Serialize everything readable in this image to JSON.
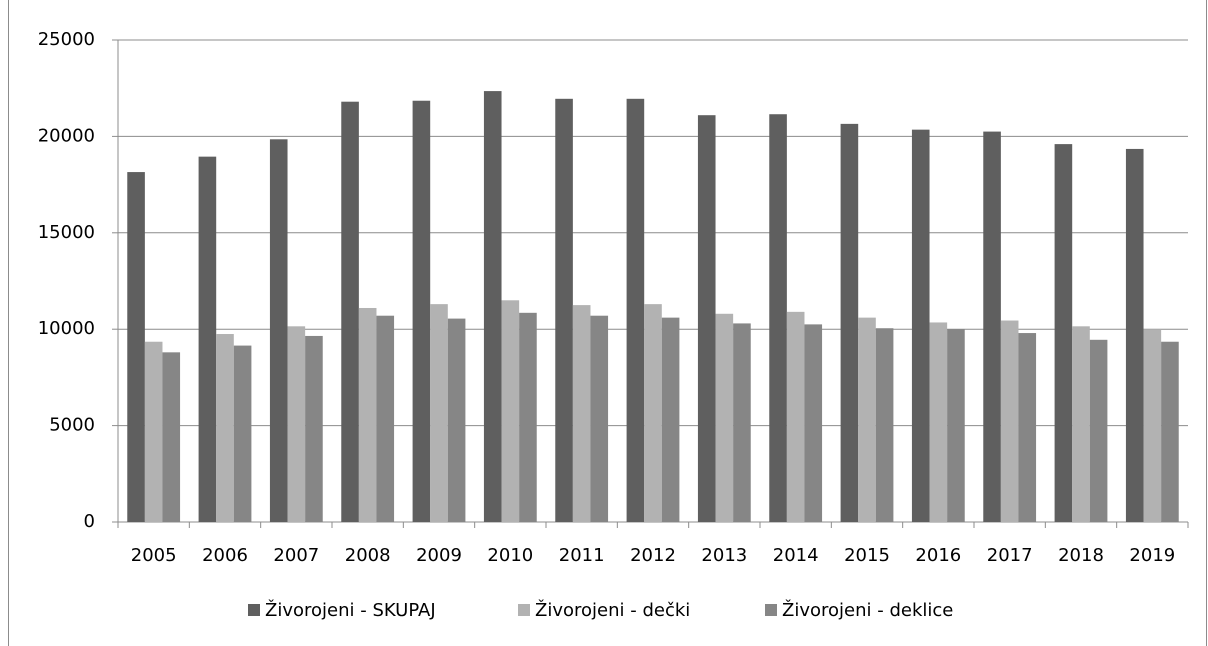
{
  "chart_data": {
    "type": "bar",
    "categories": [
      "2005",
      "2006",
      "2007",
      "2008",
      "2009",
      "2010",
      "2011",
      "2012",
      "2013",
      "2014",
      "2015",
      "2016",
      "2017",
      "2018",
      "2019"
    ],
    "series": [
      {
        "name": "Živorojeni - SKUPAJ",
        "color": "#5f5f5f",
        "values": [
          18150,
          18950,
          19850,
          21800,
          21850,
          22350,
          21950,
          21950,
          21100,
          21150,
          20650,
          20350,
          20250,
          19600,
          19350
        ]
      },
      {
        "name": "Živorojeni - dečki",
        "color": "#b2b2b2",
        "values": [
          9350,
          9750,
          10150,
          11100,
          11300,
          11500,
          11250,
          11300,
          10800,
          10900,
          10600,
          10350,
          10450,
          10150,
          10000
        ]
      },
      {
        "name": "Živorojeni - deklice",
        "color": "#868686",
        "values": [
          8800,
          9150,
          9650,
          10700,
          10550,
          10850,
          10700,
          10600,
          10300,
          10250,
          10050,
          10000,
          9800,
          9450,
          9350
        ]
      }
    ],
    "ylim": [
      0,
      25000
    ],
    "yticks": [
      0,
      5000,
      10000,
      15000,
      20000,
      25000
    ],
    "grid": true,
    "legend": "bottom"
  }
}
